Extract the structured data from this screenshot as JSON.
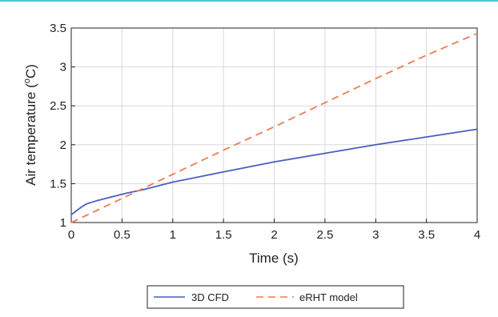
{
  "chart_data": {
    "type": "line",
    "xlabel": "Time (s)",
    "ylabel_main": "Air temperature (",
    "ylabel_sup": "o",
    "ylabel_unit": "C)",
    "xlim": [
      0,
      4
    ],
    "ylim": [
      1,
      3.5
    ],
    "xticks": [
      "0",
      "0.5",
      "1",
      "1.5",
      "2",
      "2.5",
      "3",
      "3.5",
      "4"
    ],
    "yticks": [
      "1",
      "1.5",
      "2",
      "2.5",
      "3",
      "3.5"
    ],
    "grid": true,
    "legend_position": "bottom",
    "series": [
      {
        "name": "3D CFD",
        "color": "#4a5fbf",
        "dash": "solid",
        "x": [
          0,
          0.05,
          0.1,
          0.15,
          0.25,
          0.4,
          0.55,
          0.7,
          1.0,
          1.5,
          2.0,
          2.5,
          3.0,
          3.5,
          4.0
        ],
        "y": [
          1.1,
          1.15,
          1.2,
          1.24,
          1.28,
          1.33,
          1.38,
          1.42,
          1.52,
          1.65,
          1.78,
          1.89,
          2.0,
          2.1,
          2.2
        ]
      },
      {
        "name": "eRHT model",
        "color": "#f07a52",
        "dash": "dashed",
        "x": [
          0,
          0.5,
          1.0,
          1.5,
          2.0,
          2.5,
          3.0,
          3.5,
          4.0
        ],
        "y": [
          1.0,
          1.31,
          1.62,
          1.93,
          2.23,
          2.54,
          2.85,
          3.15,
          3.43
        ]
      }
    ]
  }
}
